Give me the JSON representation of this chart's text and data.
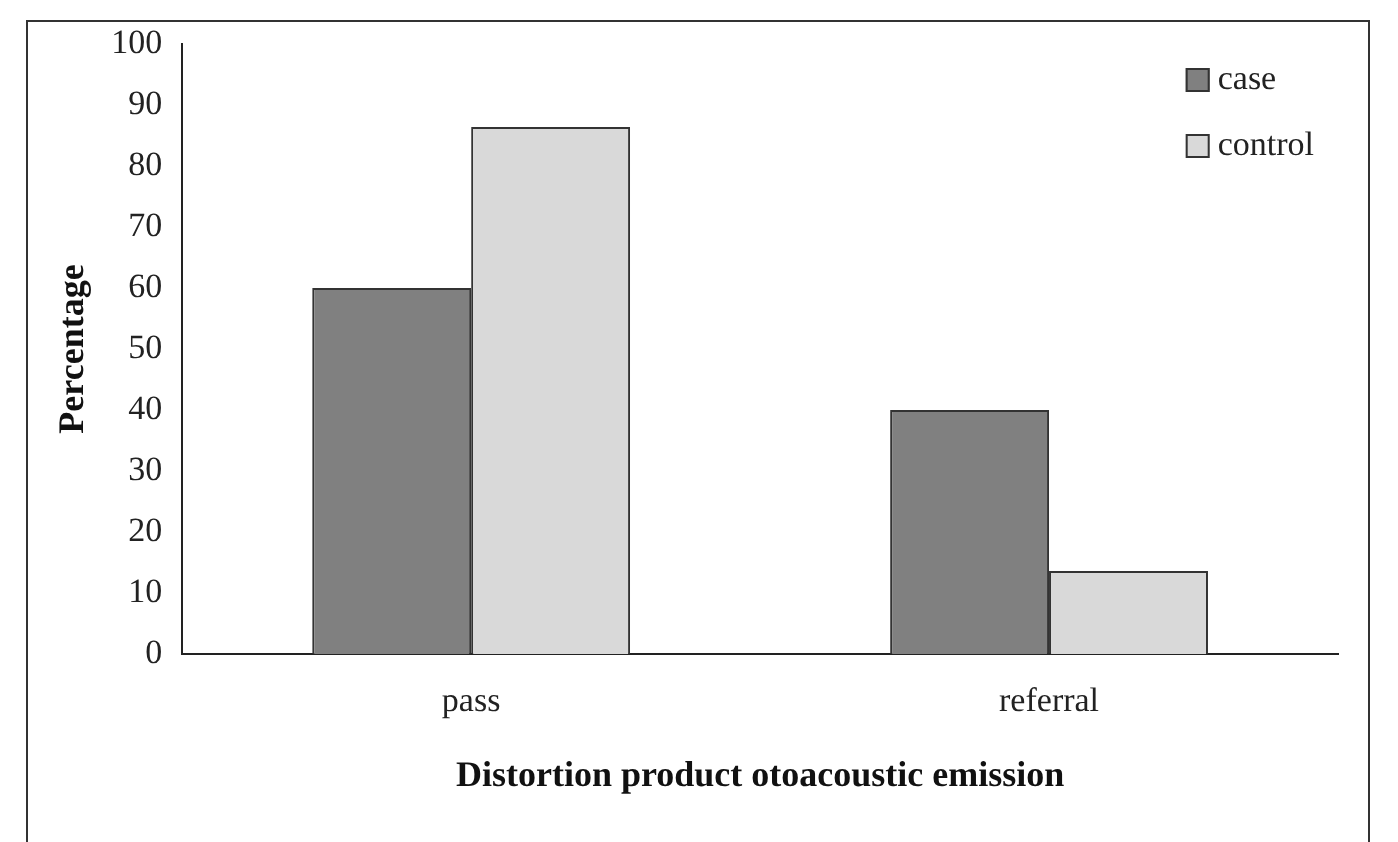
{
  "chart_data": {
    "type": "bar",
    "xlabel": "Distortion product otoacoustic emission",
    "ylabel": "Percentage",
    "categories": [
      "pass",
      "referral"
    ],
    "series": [
      {
        "name": "case",
        "color": "#808080",
        "values": [
          60,
          40
        ]
      },
      {
        "name": "control",
        "color": "#d9d9d9",
        "values": [
          86.4,
          13.6
        ]
      }
    ],
    "ylim": [
      0,
      100
    ],
    "yticks": [
      0,
      10,
      20,
      30,
      40,
      50,
      60,
      70,
      80,
      90,
      100
    ],
    "grid": false,
    "legend": "top right"
  }
}
